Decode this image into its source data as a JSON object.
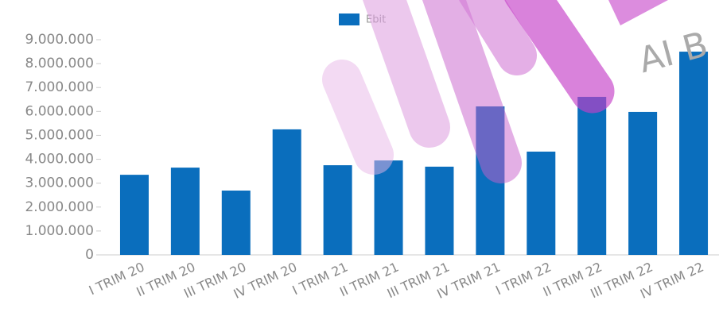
{
  "chart_data": {
    "type": "bar",
    "categories": [
      "I TRIM 20",
      "II TRIM 20",
      "III TRIM 20",
      "IV TRIM 20",
      "I TRIM 21",
      "II TRIM 21",
      "III TRIM 21",
      "IV TRIM 21",
      "I TRIM 22",
      "II TRIM 22",
      "III TRIM 22",
      "IV TRIM 22"
    ],
    "series": [
      {
        "name": "Ebit",
        "color": "#0a6ebd",
        "values": [
          3350000,
          3650000,
          2690000,
          5250000,
          3750000,
          3950000,
          3690000,
          6210000,
          4320000,
          6610000,
          5980000,
          8500000
        ]
      }
    ],
    "ylim": [
      0,
      9000000
    ],
    "yticks": [
      0,
      {
        "value": 1000000,
        "label": "1.000.000"
      },
      {
        "value": 2000000,
        "label": "2.000.000"
      },
      {
        "value": 3000000,
        "label": "3.000.000"
      },
      {
        "value": 4000000,
        "label": "4.000.000"
      },
      {
        "value": 5000000,
        "label": "5.000.000"
      },
      {
        "value": 6000000,
        "label": "6.000.000"
      },
      {
        "value": 7000000,
        "label": "7.000.000"
      },
      {
        "value": 8000000,
        "label": "8.000.000"
      },
      {
        "value": 9000000,
        "label": "9.000.000"
      }
    ],
    "legend": "top",
    "watermark": "AI B"
  }
}
